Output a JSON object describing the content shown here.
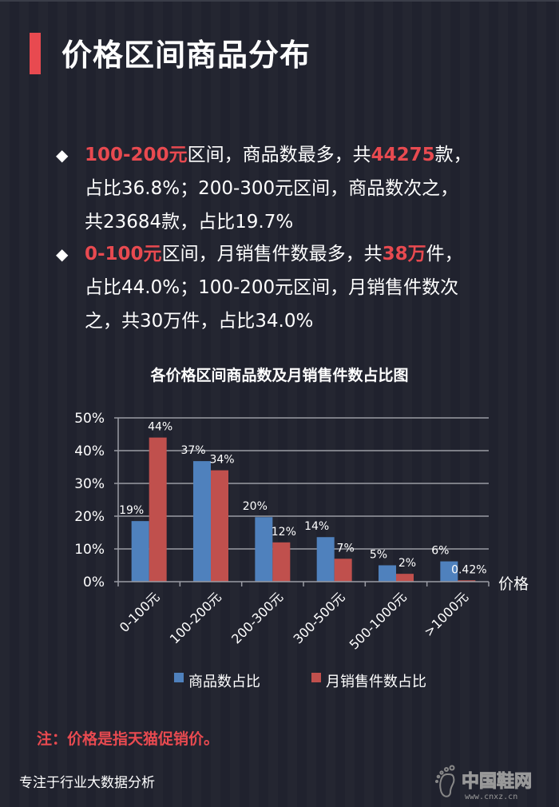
{
  "header": {
    "title": "价格区间商品分布"
  },
  "bullets": [
    {
      "lines": [
        [
          {
            "t": "100-200元",
            "hl": true
          },
          {
            "t": "区间，商品数最多，共"
          },
          {
            "t": "44275",
            "hl": true
          },
          {
            "t": "款，"
          }
        ],
        [
          {
            "t": "占比36.8%；200-300元区间，商品数次之，"
          }
        ],
        [
          {
            "t": "共23684款，占比19.7%"
          }
        ]
      ]
    },
    {
      "lines": [
        [
          {
            "t": "0-100元",
            "hl": true
          },
          {
            "t": "区间，月销售件数最多，共"
          },
          {
            "t": "38万",
            "hl": true
          },
          {
            "t": "件，"
          }
        ],
        [
          {
            "t": "占比44.0%；100-200元区间，月销售件数次"
          }
        ],
        [
          {
            "t": "之，共30万件，占比34.0%"
          }
        ]
      ]
    }
  ],
  "bullet_icon": "◆",
  "chart_data": {
    "type": "bar",
    "title": "各价格区间商品数及月销售件数占比图",
    "xlabel": "价格",
    "ylabel": "",
    "ylim": [
      0,
      50
    ],
    "yticks": [
      "0%",
      "10%",
      "20%",
      "30%",
      "40%",
      "50%"
    ],
    "grid": true,
    "legend_position": "bottom",
    "categories": [
      "0-100元",
      "100-200元",
      "200-300元",
      "300-500元",
      "500-1000元",
      ">1000元"
    ],
    "series": [
      {
        "name": "商品数占比",
        "color": "#4f81bd",
        "values": [
          18.5,
          36.8,
          19.7,
          13.6,
          5.0,
          6.2
        ],
        "labels": [
          "19%",
          "37%",
          "20%",
          "14%",
          "5%",
          "6%"
        ]
      },
      {
        "name": "月销售件数占比",
        "color": "#c0504d",
        "values": [
          44.0,
          34.0,
          12.0,
          7.0,
          2.4,
          0.42
        ],
        "labels": [
          "44%",
          "34%",
          "12%",
          "7%",
          "2%",
          "0.42%"
        ]
      }
    ]
  },
  "footer": {
    "note": "注：价格是指天猫促销价。",
    "slogan": "专注于行业大数据分析",
    "logo_text": "中国鞋网",
    "logo_url_text": "www.cnxz.cn"
  },
  "colors": {
    "background": "#21232f",
    "accent": "#e84a50",
    "series1": "#4f81bd",
    "series2": "#c0504d"
  }
}
